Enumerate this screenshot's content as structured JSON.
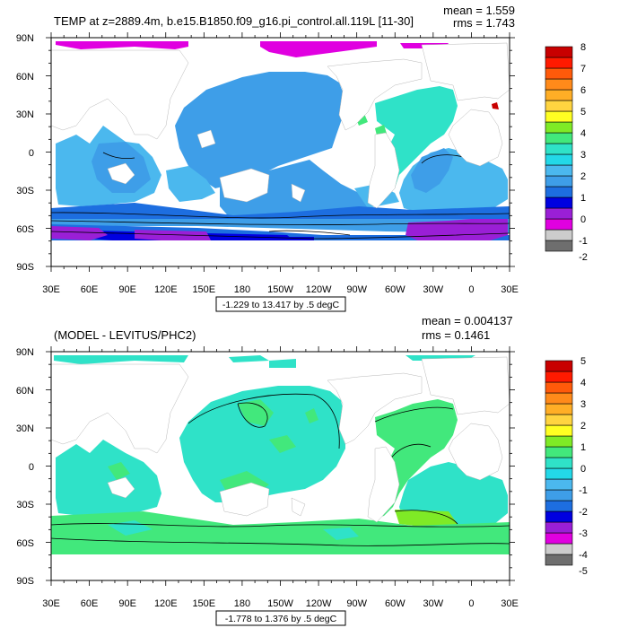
{
  "colors": {
    "panel1_scale": [
      "#6e6e6e",
      "#cccccc",
      "#e000e0",
      "#9a1fd6",
      "#0000e0",
      "#1d6ee0",
      "#3e9ee8",
      "#4bb8ee",
      "#23d8e8",
      "#2fe2c8",
      "#42e87c",
      "#7fea26",
      "#ffff22",
      "#ffd440",
      "#ffae26",
      "#ff8a1a",
      "#ff5a0a",
      "#ff1a00",
      "#c80000"
    ],
    "panel2_scale": [
      "#6e6e6e",
      "#cccccc",
      "#e000e0",
      "#9a1fd6",
      "#0000e0",
      "#1d6ee0",
      "#3e9ee8",
      "#4bb8ee",
      "#23d8e8",
      "#2fe2c8",
      "#42e87c",
      "#7fea26",
      "#ffff22",
      "#ffd440",
      "#ffae26",
      "#ff8a1a",
      "#ff5a0a",
      "#ff1a00",
      "#c80000"
    ],
    "land": "#ffffff",
    "contour": "#000000"
  },
  "panel1": {
    "title": "TEMP at z=2889.4m, b.e15.B1850.f09_g16.pi_control.all.119L [11-30]",
    "mean_text": "mean = 1.559",
    "rms_text": "rms = 1.743",
    "range_text": "-1.229 to 13.417 by .5 degC",
    "lat_labels": [
      "90N",
      "60N",
      "30N",
      "0",
      "30S",
      "60S",
      "90S"
    ],
    "lon_labels": [
      "30E",
      "60E",
      "90E",
      "120E",
      "150E",
      "180",
      "150W",
      "120W",
      "90W",
      "60W",
      "30W",
      "0",
      "30E"
    ],
    "colorbar_labels": [
      "8",
      "7",
      "6",
      "5",
      "4",
      "3",
      "2",
      "1",
      "0",
      "-1",
      "-2"
    ]
  },
  "panel2": {
    "title": "(MODEL - LEVITUS/PHC2)",
    "mean_text": "mean = 0.004137",
    "rms_text": "rms = 0.1461",
    "range_text": "-1.778 to 1.376 by .5 degC",
    "lat_labels": [
      "90N",
      "60N",
      "30N",
      "0",
      "30S",
      "60S",
      "90S"
    ],
    "lon_labels": [
      "30E",
      "60E",
      "90E",
      "120E",
      "150E",
      "180",
      "150W",
      "120W",
      "90W",
      "60W",
      "30W",
      "0",
      "30E"
    ],
    "colorbar_labels": [
      "5",
      "4",
      "3",
      "2",
      "1",
      "0",
      "-1",
      "-2",
      "-3",
      "-4",
      "-5"
    ]
  }
}
